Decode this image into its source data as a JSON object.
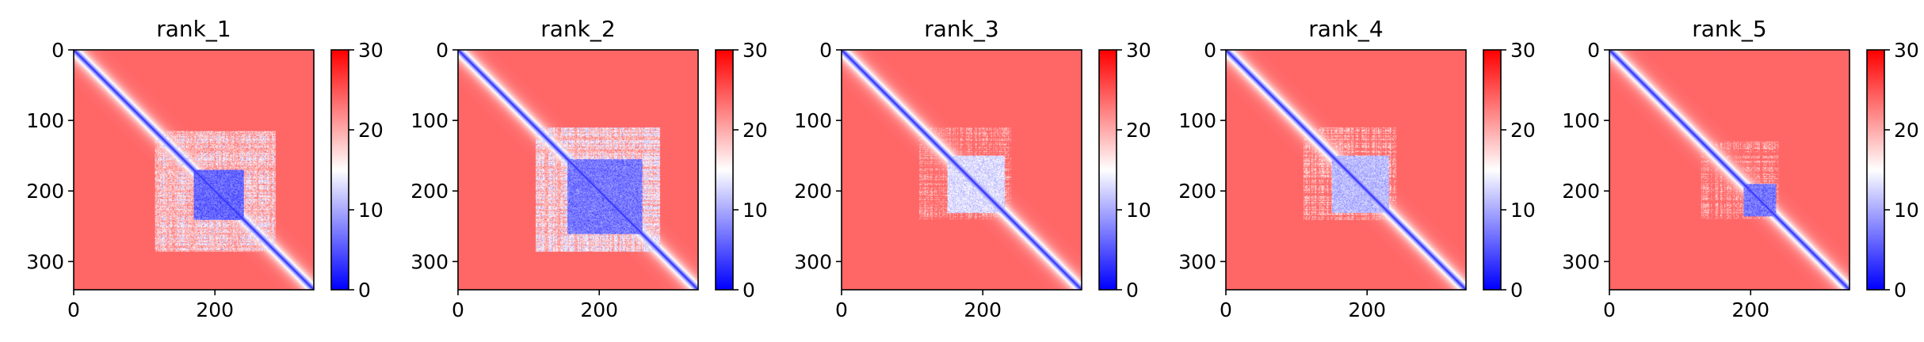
{
  "chart_data": {
    "type": "heatmap",
    "colormap": "bwr",
    "colormap_colors": {
      "low": "#0000ff",
      "mid": "#ffffff",
      "high": "#ff0000"
    },
    "color_range": [
      0,
      30
    ],
    "colorbar_ticks": [
      0,
      10,
      20,
      30
    ],
    "colorbar_tick_labels": [
      "0",
      "10",
      "20",
      "30"
    ],
    "matrix_size": 340,
    "x_ticks": [
      0,
      200
    ],
    "x_tick_labels": [
      "0",
      "200"
    ],
    "y_ticks": [
      0,
      100,
      200,
      300
    ],
    "y_tick_labels": [
      "0",
      "100",
      "200",
      "300"
    ],
    "xlim": [
      0,
      340
    ],
    "ylim": [
      340,
      0
    ],
    "grid": false,
    "panels": [
      {
        "title": "rank_1",
        "low_region": [
          115,
          285
        ],
        "core_region": [
          170,
          240
        ],
        "core_level": 6,
        "region_level": 14
      },
      {
        "title": "rank_2",
        "low_region": [
          110,
          285
        ],
        "core_region": [
          155,
          260
        ],
        "core_level": 7,
        "region_level": 14
      },
      {
        "title": "rank_3",
        "low_region": [
          110,
          240
        ],
        "core_region": [
          150,
          230
        ],
        "core_level": 13,
        "region_level": 20
      },
      {
        "title": "rank_4",
        "low_region": [
          110,
          240
        ],
        "core_region": [
          150,
          230
        ],
        "core_level": 11,
        "region_level": 19
      },
      {
        "title": "rank_5",
        "low_region": [
          130,
          240
        ],
        "core_region": [
          190,
          235
        ],
        "core_level": 7,
        "region_level": 20
      }
    ]
  }
}
